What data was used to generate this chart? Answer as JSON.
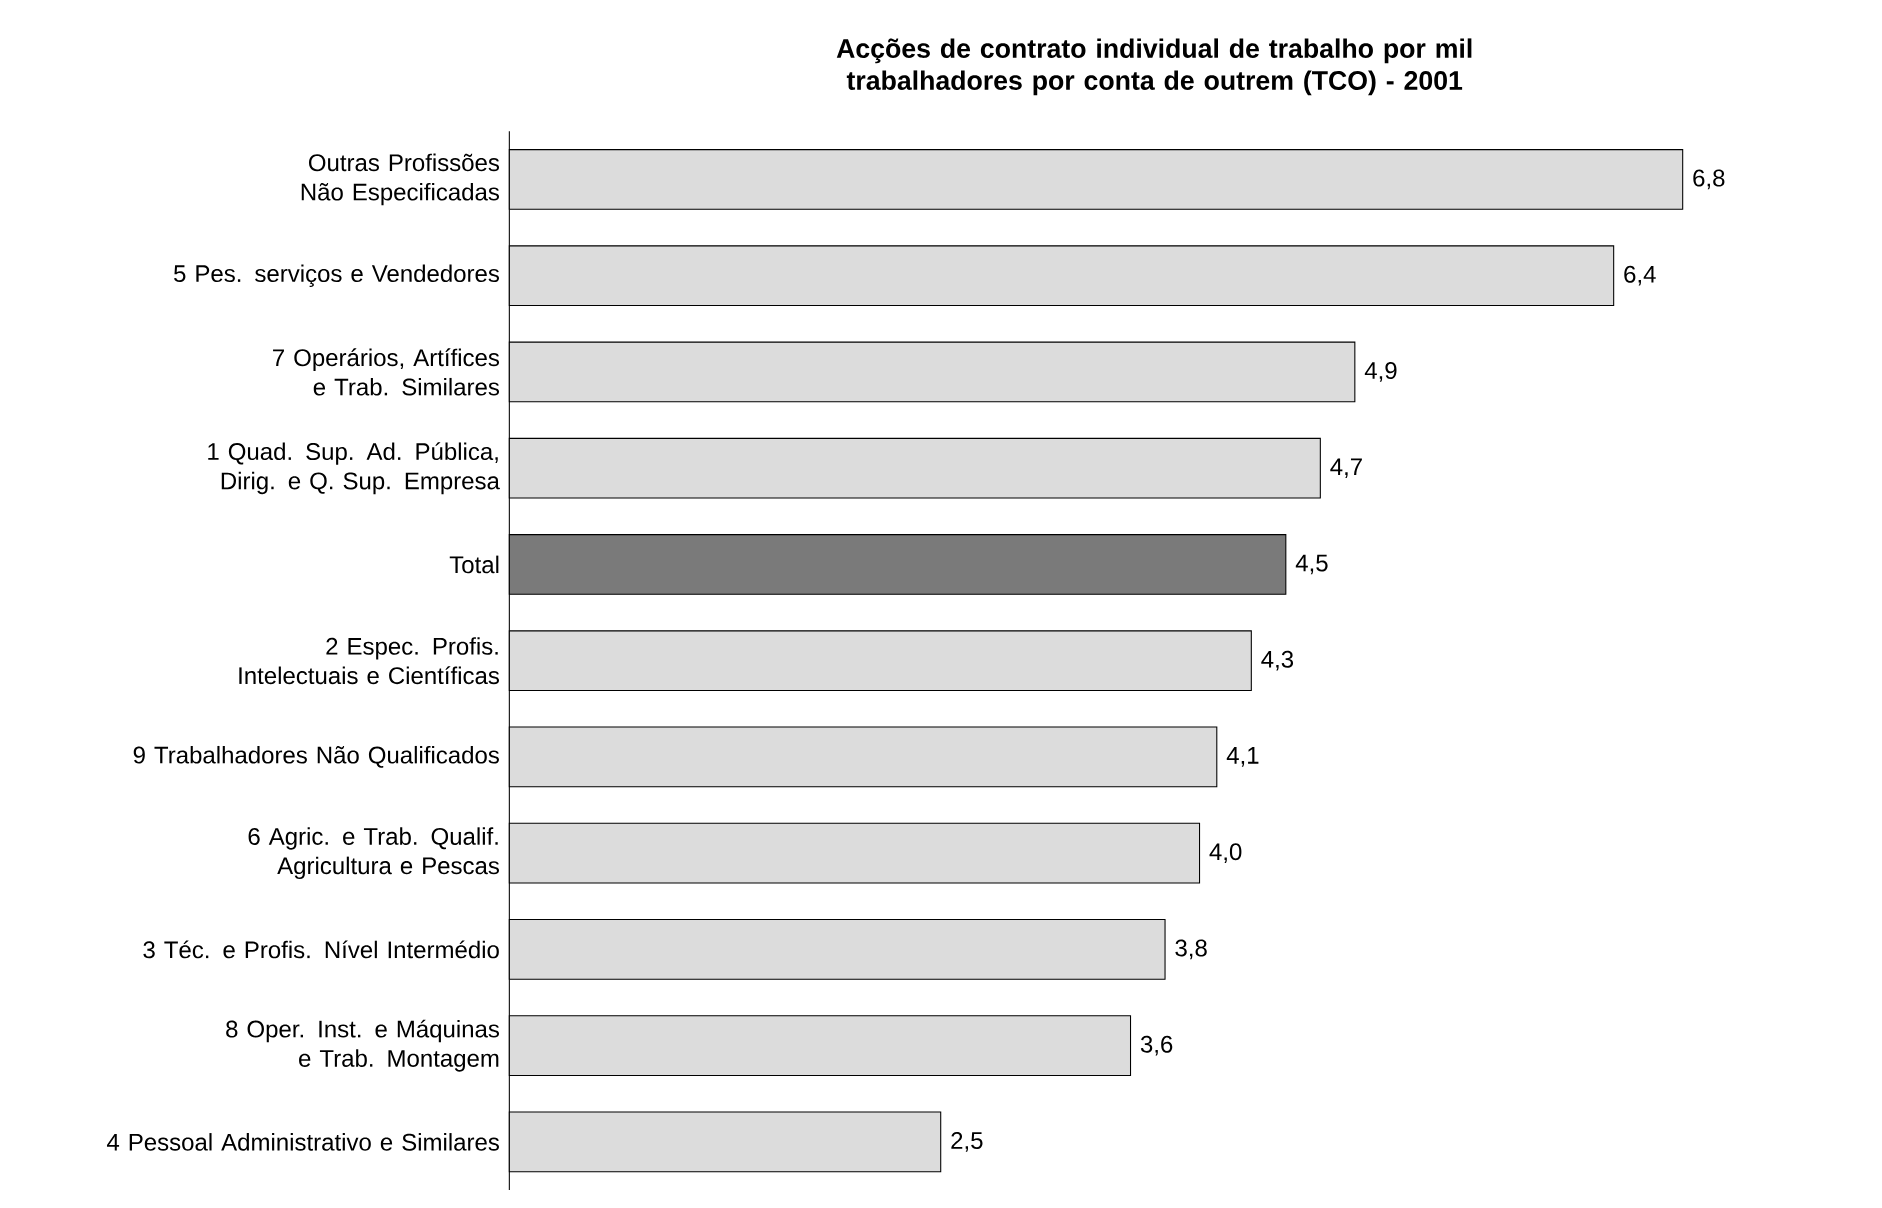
{
  "chart_data": {
    "type": "bar",
    "orientation": "horizontal",
    "title": "Acções de contrato individual de trabalho por mil trabalhadores por conta de outrem (TCO) - 2001",
    "categories": [
      "Outras Profissões Não Especificadas",
      "5 Pes. serviços e Vendedores",
      "7 Operários, Artífices e Trab. Similares",
      "1 Quad. Sup. Ad. Pública, Dirig. e Q. Sup. Empresa",
      "Total",
      "2 Espec. Profis. Intelectuais e Científicas",
      "9 Trabalhadores Não Qualificados",
      "6 Agric. e Trab. Qualif. Agricultura e Pescas",
      "3 Téc. e Profis. Nível Intermédio",
      "8 Oper. Inst. e Máquinas e Trab. Montagem",
      "4 Pessoal Administrativo e Similares"
    ],
    "values": [
      6.8,
      6.4,
      4.9,
      4.7,
      4.5,
      4.3,
      4.1,
      4.0,
      3.8,
      3.6,
      2.5
    ],
    "value_labels": [
      "6,8",
      "6,4",
      "4,9",
      "4,7",
      "4,5",
      "4,3",
      "4,1",
      "4,0",
      "3,8",
      "3,6",
      "2,5"
    ],
    "colors": [
      "#dcdcdc",
      "#dcdcdc",
      "#dcdcdc",
      "#dcdcdc",
      "#7a7a7a",
      "#dcdcdc",
      "#dcdcdc",
      "#dcdcdc",
      "#dcdcdc",
      "#dcdcdc",
      "#dcdcdc"
    ]
  }
}
